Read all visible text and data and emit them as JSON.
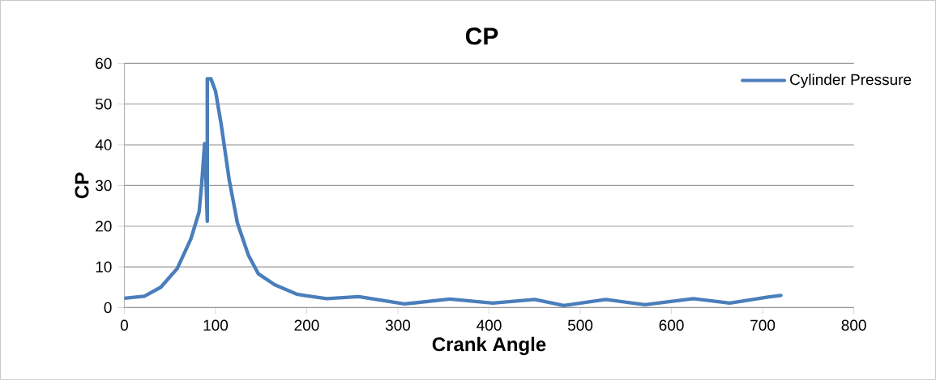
{
  "chart_data": {
    "type": "line",
    "title": "CP",
    "xlabel": "Crank Angle",
    "ylabel": "CP",
    "xlim": [
      0,
      800
    ],
    "xticks": [
      0,
      100,
      200,
      300,
      400,
      500,
      600,
      700,
      800
    ],
    "ylim": [
      0,
      60
    ],
    "yticks": [
      0,
      10,
      20,
      30,
      40,
      50,
      60
    ],
    "grid": "y",
    "legend": "top right",
    "marker": "none",
    "line_style": "solid",
    "series": [
      {
        "name": "Cylinder Pressure",
        "color": "#4a7ebb",
        "x": [
          0,
          22,
          40,
          58,
          73,
          82,
          85,
          88,
          89,
          91,
          91,
          95,
          100,
          106,
          115,
          124,
          136,
          147,
          165,
          189,
          200,
          222,
          257,
          307,
          357,
          404,
          450,
          482,
          528,
          571,
          624,
          664,
          706,
          720
        ],
        "values": [
          2.3,
          2.8,
          5,
          9.6,
          16.9,
          23.5,
          30.8,
          40.3,
          35,
          21.2,
          56.2,
          56.2,
          53.2,
          45.3,
          31.4,
          20.8,
          12.9,
          8.3,
          5.6,
          3.3,
          2.9,
          2.2,
          2.7,
          0.9,
          2.1,
          1.1,
          2.0,
          0.5,
          2.0,
          0.7,
          2.2,
          1.1,
          2.6,
          3.0
        ]
      }
    ]
  }
}
